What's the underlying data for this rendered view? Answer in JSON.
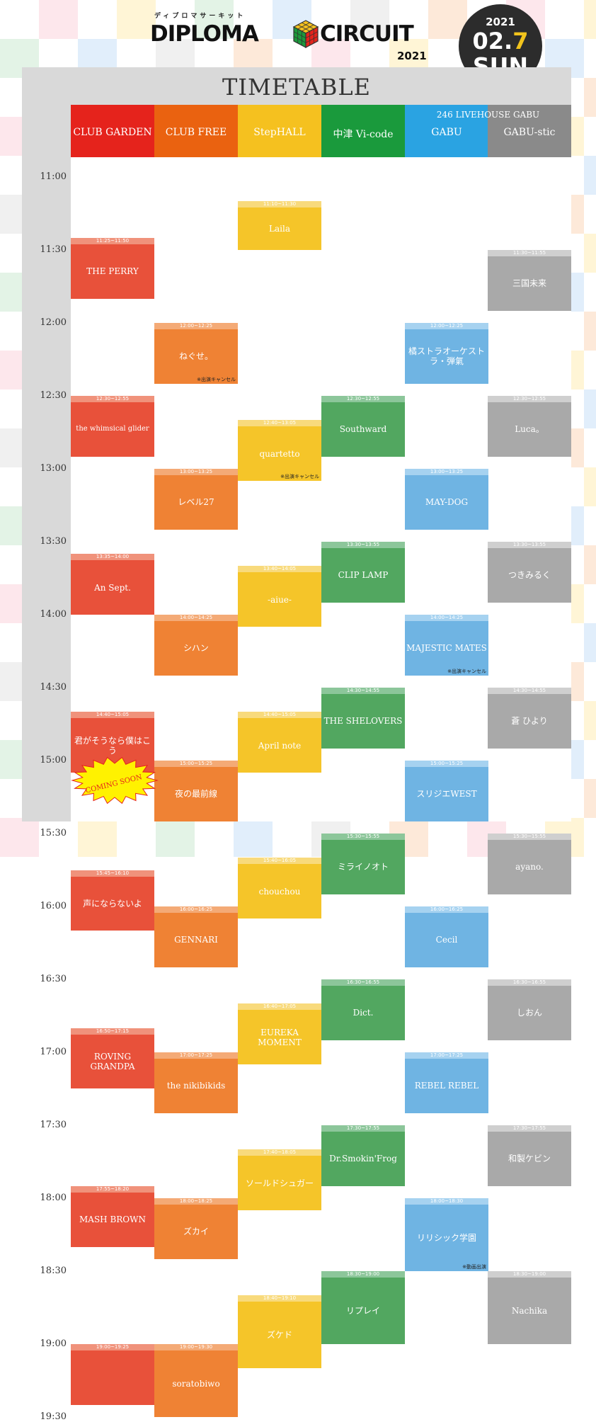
{
  "header": {
    "kana": "ディプロマサーキット",
    "logo_left": "DIPLOMA",
    "logo_right": "CIRCUIT",
    "logo_year": "2021"
  },
  "badge": {
    "year": "2021",
    "date_month": "02.",
    "date_day": "7",
    "weekday": "SUN"
  },
  "title": "TIMETABLE",
  "venue_group": "246 LIVEHOUSE GABU",
  "venues": [
    {
      "name": "CLUB GARDEN",
      "color": "#e5231c"
    },
    {
      "name": "CLUB FREE",
      "color": "#ea6210"
    },
    {
      "name": "StepHALL",
      "color": "#f5c11f"
    },
    {
      "name": "中津 Vi-code",
      "color": "#1a9a3c"
    },
    {
      "name": "GABU",
      "color": "#2aa3e2"
    },
    {
      "name": "GABU-stic",
      "color": "#8a8a8a"
    }
  ],
  "times": [
    "11:00",
    "11:30",
    "12:00",
    "12:30",
    "13:00",
    "13:30",
    "14:00",
    "14:30",
    "15:00",
    "15:30",
    "16:00",
    "16:30",
    "17:00",
    "17:30",
    "18:00",
    "18:30",
    "19:00",
    "19:30"
  ],
  "slots": [
    {
      "col": 0,
      "start": "11:25",
      "end": "11:50",
      "time": "11:25~11:50",
      "name": "THE PERRY"
    },
    {
      "col": 0,
      "start": "12:30",
      "end": "12:55",
      "time": "12:30~12:55",
      "name": "the whimsical glider"
    },
    {
      "col": 0,
      "start": "13:35",
      "end": "14:00",
      "time": "13:35~14:00",
      "name": "An Sept."
    },
    {
      "col": 0,
      "start": "14:40",
      "end": "15:05",
      "time": "14:40~15:05",
      "name": "君がそうなら僕はこう"
    },
    {
      "col": 0,
      "start": "15:45",
      "end": "16:10",
      "time": "15:45~16:10",
      "name": "声にならないよ"
    },
    {
      "col": 0,
      "start": "16:50",
      "end": "17:15",
      "time": "16:50~17:15",
      "name": "ROVING GRANDPA"
    },
    {
      "col": 0,
      "start": "17:55",
      "end": "18:20",
      "time": "17:55~18:20",
      "name": "MASH BROWN"
    },
    {
      "col": 0,
      "start": "19:00",
      "end": "19:25",
      "time": "19:00~19:25",
      "name": ""
    },
    {
      "col": 1,
      "start": "12:00",
      "end": "12:25",
      "time": "12:00~12:25",
      "name": "ねぐせ。",
      "note": "※出演キャンセル"
    },
    {
      "col": 1,
      "start": "13:00",
      "end": "13:25",
      "time": "13:00~13:25",
      "name": "レベル27"
    },
    {
      "col": 1,
      "start": "14:00",
      "end": "14:25",
      "time": "14:00~14:25",
      "name": "シハン"
    },
    {
      "col": 1,
      "start": "15:00",
      "end": "15:25",
      "time": "15:00~15:25",
      "name": "夜の最前線"
    },
    {
      "col": 1,
      "start": "16:00",
      "end": "16:25",
      "time": "16:00~16:25",
      "name": "GENNARI"
    },
    {
      "col": 1,
      "start": "17:00",
      "end": "17:25",
      "time": "17:00~17:25",
      "name": "the nikibikids"
    },
    {
      "col": 1,
      "start": "18:00",
      "end": "18:25",
      "time": "18:00~18:25",
      "name": "ズカイ"
    },
    {
      "col": 1,
      "start": "19:00",
      "end": "19:30",
      "time": "19:00~19:30",
      "name": "soratobiwo"
    },
    {
      "col": 2,
      "start": "11:10",
      "end": "11:30",
      "time": "11:10~11:30",
      "name": "Laila"
    },
    {
      "col": 2,
      "start": "12:40",
      "end": "13:05",
      "time": "12:40~13:05",
      "name": "quartetto",
      "note": "※出演キャンセル"
    },
    {
      "col": 2,
      "start": "13:40",
      "end": "14:05",
      "time": "13:40~14:05",
      "name": "-aiue-"
    },
    {
      "col": 2,
      "start": "14:40",
      "end": "15:05",
      "time": "14:40~15:05",
      "name": "April note"
    },
    {
      "col": 2,
      "start": "15:40",
      "end": "16:05",
      "time": "15:40~16:05",
      "name": "chouchou"
    },
    {
      "col": 2,
      "start": "16:40",
      "end": "17:05",
      "time": "16:40~17:05",
      "name": "EUREKA MOMENT"
    },
    {
      "col": 2,
      "start": "17:40",
      "end": "18:05",
      "time": "17:40~18:05",
      "name": "ソールドシュガー"
    },
    {
      "col": 2,
      "start": "18:40",
      "end": "19:10",
      "time": "18:40~19:10",
      "name": "ズケド"
    },
    {
      "col": 3,
      "start": "12:30",
      "end": "12:55",
      "time": "12:30~12:55",
      "name": "Southward"
    },
    {
      "col": 3,
      "start": "13:30",
      "end": "13:55",
      "time": "13:30~13:55",
      "name": "CLIP LAMP"
    },
    {
      "col": 3,
      "start": "14:30",
      "end": "14:55",
      "time": "14:30~14:55",
      "name": "THE SHELOVERS"
    },
    {
      "col": 3,
      "start": "15:30",
      "end": "15:55",
      "time": "15:30~15:55",
      "name": "ミライノオト"
    },
    {
      "col": 3,
      "start": "16:30",
      "end": "16:55",
      "time": "16:30~16:55",
      "name": "Dict."
    },
    {
      "col": 3,
      "start": "17:30",
      "end": "17:55",
      "time": "17:30~17:55",
      "name": "Dr.Smokin'Frog"
    },
    {
      "col": 3,
      "start": "18:30",
      "end": "19:00",
      "time": "18:30~19:00",
      "name": "リプレイ"
    },
    {
      "col": 4,
      "start": "12:00",
      "end": "12:25",
      "time": "12:00~12:25",
      "name": "橘ストラオーケストラ・弾氣"
    },
    {
      "col": 4,
      "start": "13:00",
      "end": "13:25",
      "time": "13:00~13:25",
      "name": "MAY-DOG"
    },
    {
      "col": 4,
      "start": "14:00",
      "end": "14:25",
      "time": "14:00~14:25",
      "name": "MAJESTIC MATES",
      "note": "※出演キャンセル"
    },
    {
      "col": 4,
      "start": "15:00",
      "end": "15:25",
      "time": "15:00~15:25",
      "name": "スリジエWEST"
    },
    {
      "col": 4,
      "start": "16:00",
      "end": "16:25",
      "time": "16:00~16:25",
      "name": "Cecil"
    },
    {
      "col": 4,
      "start": "17:00",
      "end": "17:25",
      "time": "17:00~17:25",
      "name": "REBEL REBEL"
    },
    {
      "col": 4,
      "start": "18:00",
      "end": "18:30",
      "time": "18:00~18:30",
      "name": "リリシック学園",
      "note": "※動画出演"
    },
    {
      "col": 5,
      "start": "11:30",
      "end": "11:55",
      "time": "11:30~11:55",
      "name": "三国未来"
    },
    {
      "col": 5,
      "start": "12:30",
      "end": "12:55",
      "time": "12:30~12:55",
      "name": "Luca。"
    },
    {
      "col": 5,
      "start": "13:30",
      "end": "13:55",
      "time": "13:30~13:55",
      "name": "つきみるく"
    },
    {
      "col": 5,
      "start": "14:30",
      "end": "14:55",
      "time": "14:30~14:55",
      "name": "蒼 ひより"
    },
    {
      "col": 5,
      "start": "15:30",
      "end": "15:55",
      "time": "15:30~15:55",
      "name": "ayano."
    },
    {
      "col": 5,
      "start": "16:30",
      "end": "16:55",
      "time": "16:30~16:55",
      "name": "しおん"
    },
    {
      "col": 5,
      "start": "17:30",
      "end": "17:55",
      "time": "17:30~17:55",
      "name": "和製ケビン"
    },
    {
      "col": 5,
      "start": "18:30",
      "end": "19:00",
      "time": "18:30~19:00",
      "name": "Nachika"
    }
  ],
  "coming_soon": "COMING SOON",
  "palette": {
    "slot": [
      "#e8513a",
      "#ef8234",
      "#f5c529",
      "#52a760",
      "#6fb4e3",
      "#a9a9a9"
    ],
    "slot_head": [
      "#f0927b",
      "#f4aa76",
      "#f8da7c",
      "#8cc69a",
      "#a6d2f0",
      "#cfcfcf"
    ]
  }
}
